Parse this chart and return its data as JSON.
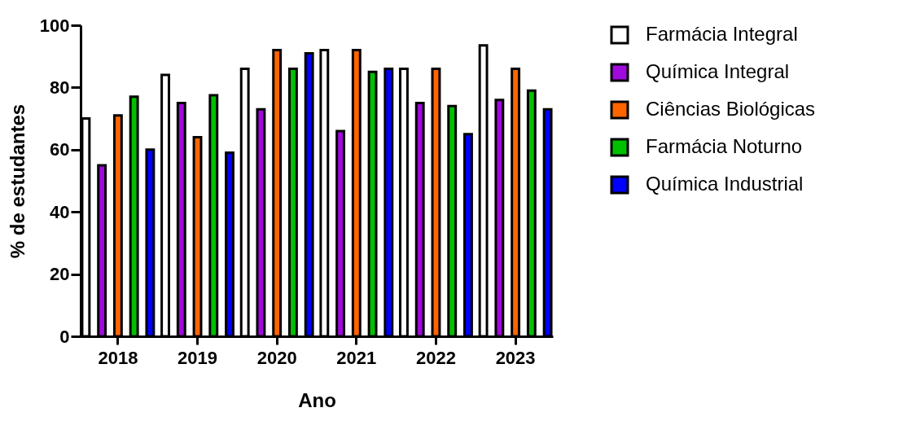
{
  "chart_data": {
    "type": "bar",
    "xlabel": "Ano",
    "ylabel": "% de estudantes",
    "categories": [
      "2018",
      "2019",
      "2020",
      "2021",
      "2022",
      "2023"
    ],
    "series": [
      {
        "name": "Farmácia Integral",
        "color": "#ffffff",
        "values": [
          70,
          84,
          86,
          92,
          86,
          93.5
        ]
      },
      {
        "name": "Química Integral",
        "color": "#a00adc",
        "values": [
          55,
          75,
          73,
          66,
          75,
          76
        ]
      },
      {
        "name": "Ciências Biológicas",
        "color": "#ff6400",
        "values": [
          71,
          64,
          92,
          92,
          86,
          86
        ]
      },
      {
        "name": "Farmácia Noturno",
        "color": "#00c000",
        "values": [
          77,
          77.5,
          86,
          85,
          74,
          79
        ]
      },
      {
        "name": "Química Industrial",
        "color": "#0000ff",
        "values": [
          60,
          59,
          91,
          86,
          65,
          73
        ]
      }
    ],
    "ylim": [
      0,
      100
    ],
    "yticks": [
      0,
      20,
      40,
      60,
      80,
      100
    ],
    "grid": false,
    "legend": "right"
  }
}
